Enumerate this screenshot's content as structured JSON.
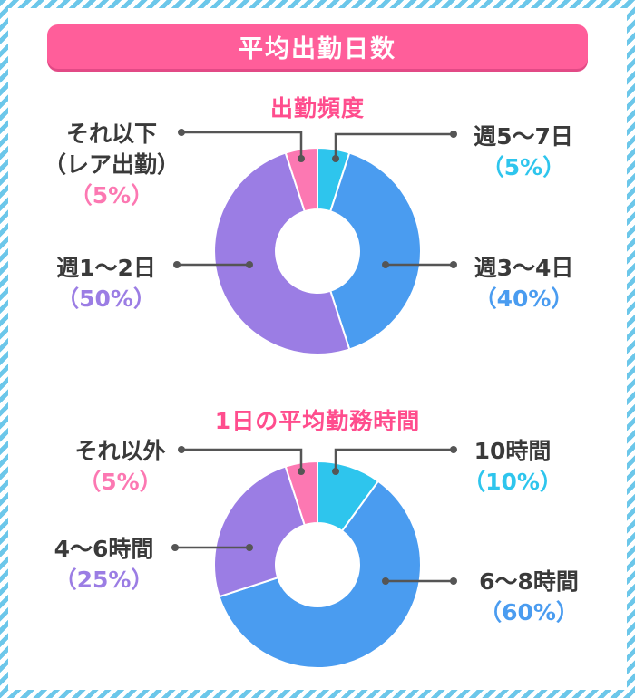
{
  "title": "平均出勤日数",
  "chart_data": [
    {
      "type": "pie",
      "title": "出勤頻度",
      "slices": [
        {
          "label": "週5～7日",
          "value": 5,
          "percent_label": "（5%）",
          "color": "#2ec5ed"
        },
        {
          "label": "週3～4日",
          "value": 40,
          "percent_label": "（40%）",
          "color": "#4a9cf0"
        },
        {
          "label": "週1～2日",
          "value": 50,
          "percent_label": "（50%）",
          "color": "#9b7de4"
        },
        {
          "label": "それ以下",
          "label_line2": "（レア出勤）",
          "value": 5,
          "percent_label": "（5%）",
          "color": "#fc78b2"
        }
      ]
    },
    {
      "type": "pie",
      "title": "1日の平均勤務時間",
      "slices": [
        {
          "label": "10時間",
          "value": 10,
          "percent_label": "（10%）",
          "color": "#2ec5ed"
        },
        {
          "label": "6～8時間",
          "value": 60,
          "percent_label": "（60%）",
          "color": "#4a9cf0"
        },
        {
          "label": "4～6時間",
          "value": 25,
          "percent_label": "（25%）",
          "color": "#9b7de4"
        },
        {
          "label": "それ以外",
          "value": 5,
          "percent_label": "（5%）",
          "color": "#fc78b2"
        }
      ]
    }
  ]
}
